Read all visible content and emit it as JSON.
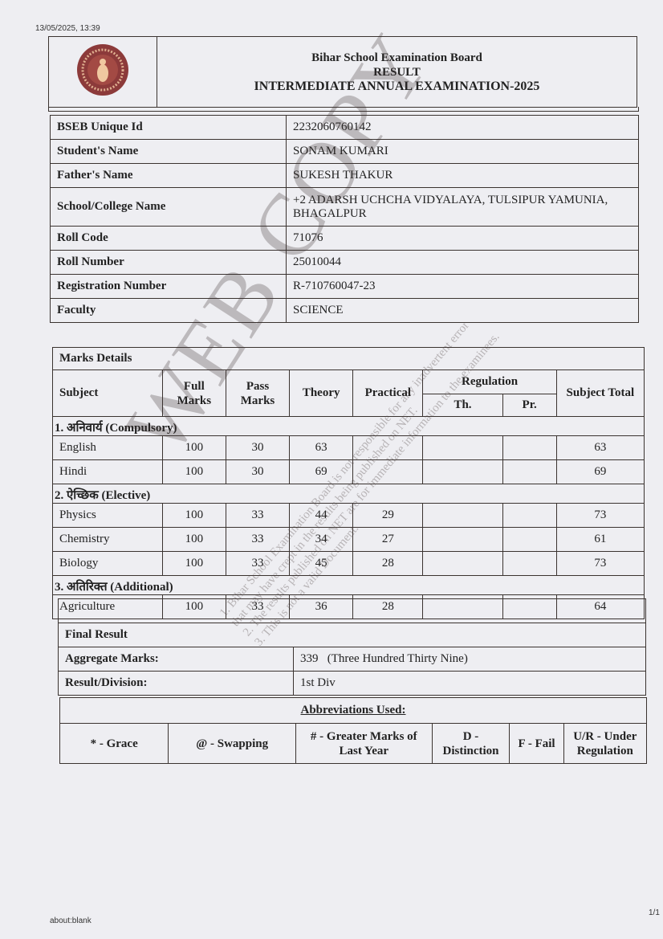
{
  "print_header": {
    "datetime": "13/05/2025, 13:39"
  },
  "print_footer": {
    "url": "about:blank",
    "page": "1/1"
  },
  "header": {
    "board": "Bihar School Examination Board",
    "result": "RESULT",
    "exam": "INTERMEDIATE ANNUAL EXAMINATION-2025",
    "logo": "bseb-seal"
  },
  "student": [
    {
      "label": "BSEB Unique Id",
      "value": "2232060760142"
    },
    {
      "label": "Student's Name",
      "value": "SONAM KUMARI"
    },
    {
      "label": "Father's Name",
      "value": "SUKESH THAKUR"
    },
    {
      "label": "School/College Name",
      "value": "+2 ADARSH UCHCHA VIDYALAYA, TULSIPUR YAMUNIA, BHAGALPUR"
    },
    {
      "label": "Roll Code",
      "value": "71076"
    },
    {
      "label": "Roll Number",
      "value": "25010044"
    },
    {
      "label": "Registration Number",
      "value": "R-710760047-23"
    },
    {
      "label": "Faculty",
      "value": "SCIENCE"
    }
  ],
  "marks_details_label": "Marks Details",
  "columns": {
    "subject": "Subject",
    "full": "Full Marks",
    "pass": "Pass Marks",
    "theory": "Theory",
    "practical": "Practical",
    "regulation": "Regulation",
    "th": "Th.",
    "pr": "Pr.",
    "total": "Subject Total"
  },
  "groups": [
    {
      "title": "1. अनिवार्य (Compulsory)",
      "subjects": [
        {
          "name": "English",
          "full": "100",
          "pass": "30",
          "theory": "63",
          "practical": "",
          "th": "",
          "pr": "",
          "total": "63"
        },
        {
          "name": "Hindi",
          "full": "100",
          "pass": "30",
          "theory": "69",
          "practical": "",
          "th": "",
          "pr": "",
          "total": "69"
        }
      ]
    },
    {
      "title": "2. ऐच्छिक (Elective)",
      "subjects": [
        {
          "name": "Physics",
          "full": "100",
          "pass": "33",
          "theory": "44",
          "practical": "29",
          "th": "",
          "pr": "",
          "total": "73"
        },
        {
          "name": "Chemistry",
          "full": "100",
          "pass": "33",
          "theory": "34",
          "practical": "27",
          "th": "",
          "pr": "",
          "total": "61"
        },
        {
          "name": "Biology",
          "full": "100",
          "pass": "33",
          "theory": "45",
          "practical": "28",
          "th": "",
          "pr": "",
          "total": "73"
        }
      ]
    },
    {
      "title": "3. अतिरिक्त (Additional)",
      "subjects": [
        {
          "name": "Agriculture",
          "full": "100",
          "pass": "33",
          "theory": "36",
          "practical": "28",
          "th": "",
          "pr": "",
          "total": "64"
        }
      ]
    }
  ],
  "final": {
    "title": "Final Result",
    "aggregate_label": "Aggregate Marks:",
    "aggregate_value": "339",
    "aggregate_words": "(Three Hundred Thirty Nine)",
    "result_label": "Result/Division:",
    "result_value": "1st Div"
  },
  "abbreviations": {
    "title": "Abbreviations Used:",
    "items": [
      "* - Grace",
      "@ - Swapping",
      "# - Greater Marks of Last Year",
      "D - Distinction",
      "F - Fail",
      "U/R - Under Regulation"
    ]
  },
  "watermark": {
    "title": "WEB COPY",
    "notes": [
      "1. Bihar School Examination Board is not responsible for any inadvertent error",
      "that may have crept in the results being published on NET.",
      "2. The results published on NET are for immediate information to the examinees.",
      "3. This is not a valid Document."
    ]
  }
}
